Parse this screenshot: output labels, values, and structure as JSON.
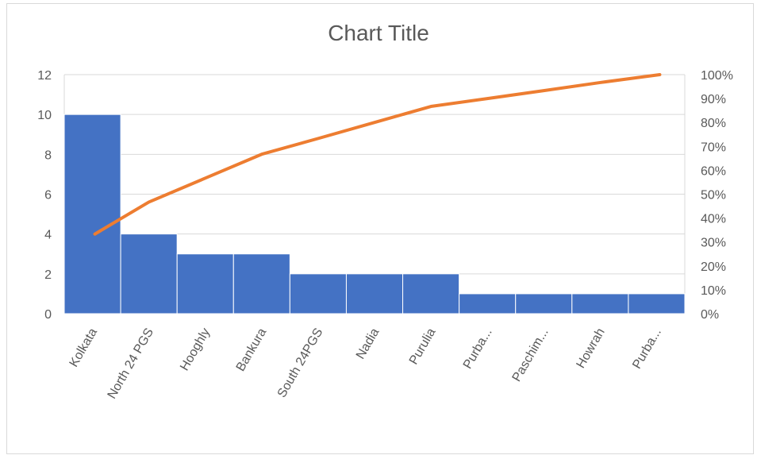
{
  "chart_data": {
    "type": "bar",
    "title": "Chart Title",
    "categories": [
      "Kolkata",
      "North 24 PGS",
      "Hooghly",
      "Bankura",
      "South 24PGS",
      "Nadia",
      "Purulia",
      "Purba...",
      "Paschim...",
      "Howrah",
      "Purba..."
    ],
    "series": [
      {
        "type": "bar",
        "axis": "left",
        "values": [
          10,
          4,
          3,
          3,
          2,
          2,
          2,
          1,
          1,
          1,
          1
        ]
      },
      {
        "type": "line",
        "axis": "right",
        "values": [
          33.3,
          46.7,
          56.7,
          66.7,
          73.3,
          80.0,
          86.7,
          90.0,
          93.3,
          96.7,
          100.0
        ]
      }
    ],
    "y_left": {
      "ylim": [
        0,
        12
      ],
      "ticks": [
        "0",
        "2",
        "4",
        "6",
        "8",
        "10",
        "12"
      ]
    },
    "y_right": {
      "ylim": [
        0,
        100
      ],
      "ticks": [
        "0%",
        "10%",
        "20%",
        "30%",
        "40%",
        "50%",
        "60%",
        "70%",
        "80%",
        "90%",
        "100%"
      ]
    },
    "grid": true,
    "legend": "none",
    "colors": {
      "bar": "#4472c4",
      "line": "#ed7d31",
      "grid": "#d9d9d9",
      "text": "#595959"
    }
  }
}
